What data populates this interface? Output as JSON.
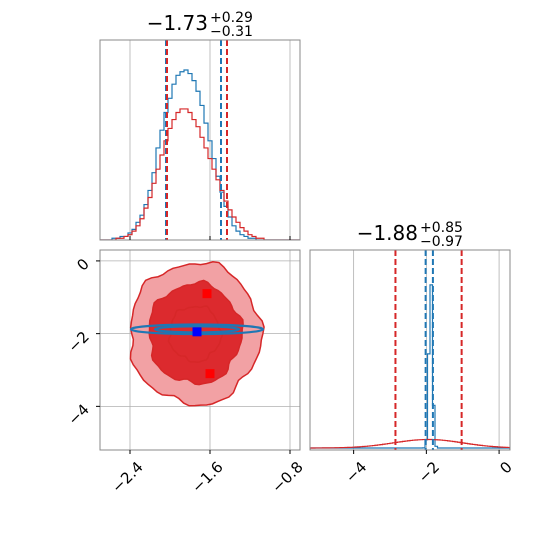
{
  "colors": {
    "red": "#d62728",
    "blue": "#1f77b4",
    "red_fill_dark": "#dc2a2e",
    "red_fill_light": "#f2a1a4"
  },
  "chart_data": [
    {
      "type": "histogram",
      "panel": "marginal-param-1",
      "title": {
        "value": "−1.73",
        "upper": "+0.29",
        "lower": "−0.31"
      },
      "xlim": [
        -2.7,
        -0.7
      ],
      "quantile_lines": {
        "red": [
          -2.04,
          -1.44
        ],
        "blue": [
          -2.04,
          -1.49
        ]
      },
      "series": [
        {
          "color": "blue",
          "bin_start": -2.7,
          "bin_width": 0.04,
          "counts": [
            0,
            0,
            0,
            1,
            1,
            2,
            2,
            4,
            6,
            10,
            14,
            20,
            28,
            38,
            52,
            62,
            72,
            80,
            88,
            93,
            95,
            96,
            94,
            90,
            84,
            76,
            66,
            56,
            46,
            36,
            27,
            19,
            13,
            8,
            5,
            3,
            2,
            1,
            1,
            0,
            0,
            0,
            0,
            0,
            0,
            0,
            0,
            0,
            0,
            0
          ]
        },
        {
          "color": "red",
          "bin_start": -2.7,
          "bin_width": 0.04,
          "counts": [
            0,
            0,
            0,
            0,
            1,
            1,
            2,
            3,
            5,
            8,
            12,
            18,
            24,
            32,
            40,
            48,
            56,
            63,
            68,
            72,
            74,
            74,
            72,
            68,
            64,
            58,
            52,
            46,
            40,
            34,
            28,
            22,
            17,
            13,
            10,
            7,
            5,
            3,
            2,
            1,
            1,
            0,
            0,
            0,
            0,
            0,
            0,
            0,
            0,
            0
          ]
        }
      ]
    },
    {
      "type": "contour",
      "panel": "joint-param-1-param-2",
      "xlim": [
        -2.7,
        -0.7
      ],
      "ylim": [
        -5.2,
        0.3
      ],
      "x_ticks": [
        "−2.4",
        "−1.6",
        "−0.8"
      ],
      "x_tick_values": [
        -2.4,
        -1.6,
        -0.8
      ],
      "y_ticks": [
        "0",
        "−2",
        "−4"
      ],
      "y_tick_values": [
        0,
        -2,
        -4
      ],
      "series": [
        {
          "color": "red",
          "center": [
            -1.75,
            -2.0
          ],
          "sigma_x": 0.32,
          "sigma_y": 0.95,
          "levels": 3
        },
        {
          "color": "blue",
          "center": [
            -1.73,
            -1.88
          ],
          "sigma_x": 0.3,
          "sigma_y": 0.05,
          "levels": 2
        }
      ],
      "markers": [
        {
          "color": "red",
          "x": -1.63,
          "y": -0.9
        },
        {
          "color": "blue",
          "x": -1.73,
          "y": -1.95
        },
        {
          "color": "red",
          "x": -1.6,
          "y": -3.1
        }
      ]
    },
    {
      "type": "histogram",
      "panel": "marginal-param-2",
      "title": {
        "value": "−1.88",
        "upper": "+0.85",
        "lower": "−0.97"
      },
      "xlim": [
        -5.2,
        0.3
      ],
      "x_ticks": [
        "−4",
        "−2",
        "0"
      ],
      "x_tick_values": [
        -4,
        -2,
        0
      ],
      "quantile_lines": {
        "red": [
          -2.85,
          -1.03
        ],
        "blue": [
          -2.02,
          -1.82
        ]
      },
      "series": [
        {
          "color": "blue",
          "mean": -1.88,
          "sigma": 0.05,
          "peak": 1.0
        },
        {
          "color": "red",
          "mean": -1.95,
          "sigma": 0.95,
          "peak": 0.05
        }
      ]
    }
  ]
}
